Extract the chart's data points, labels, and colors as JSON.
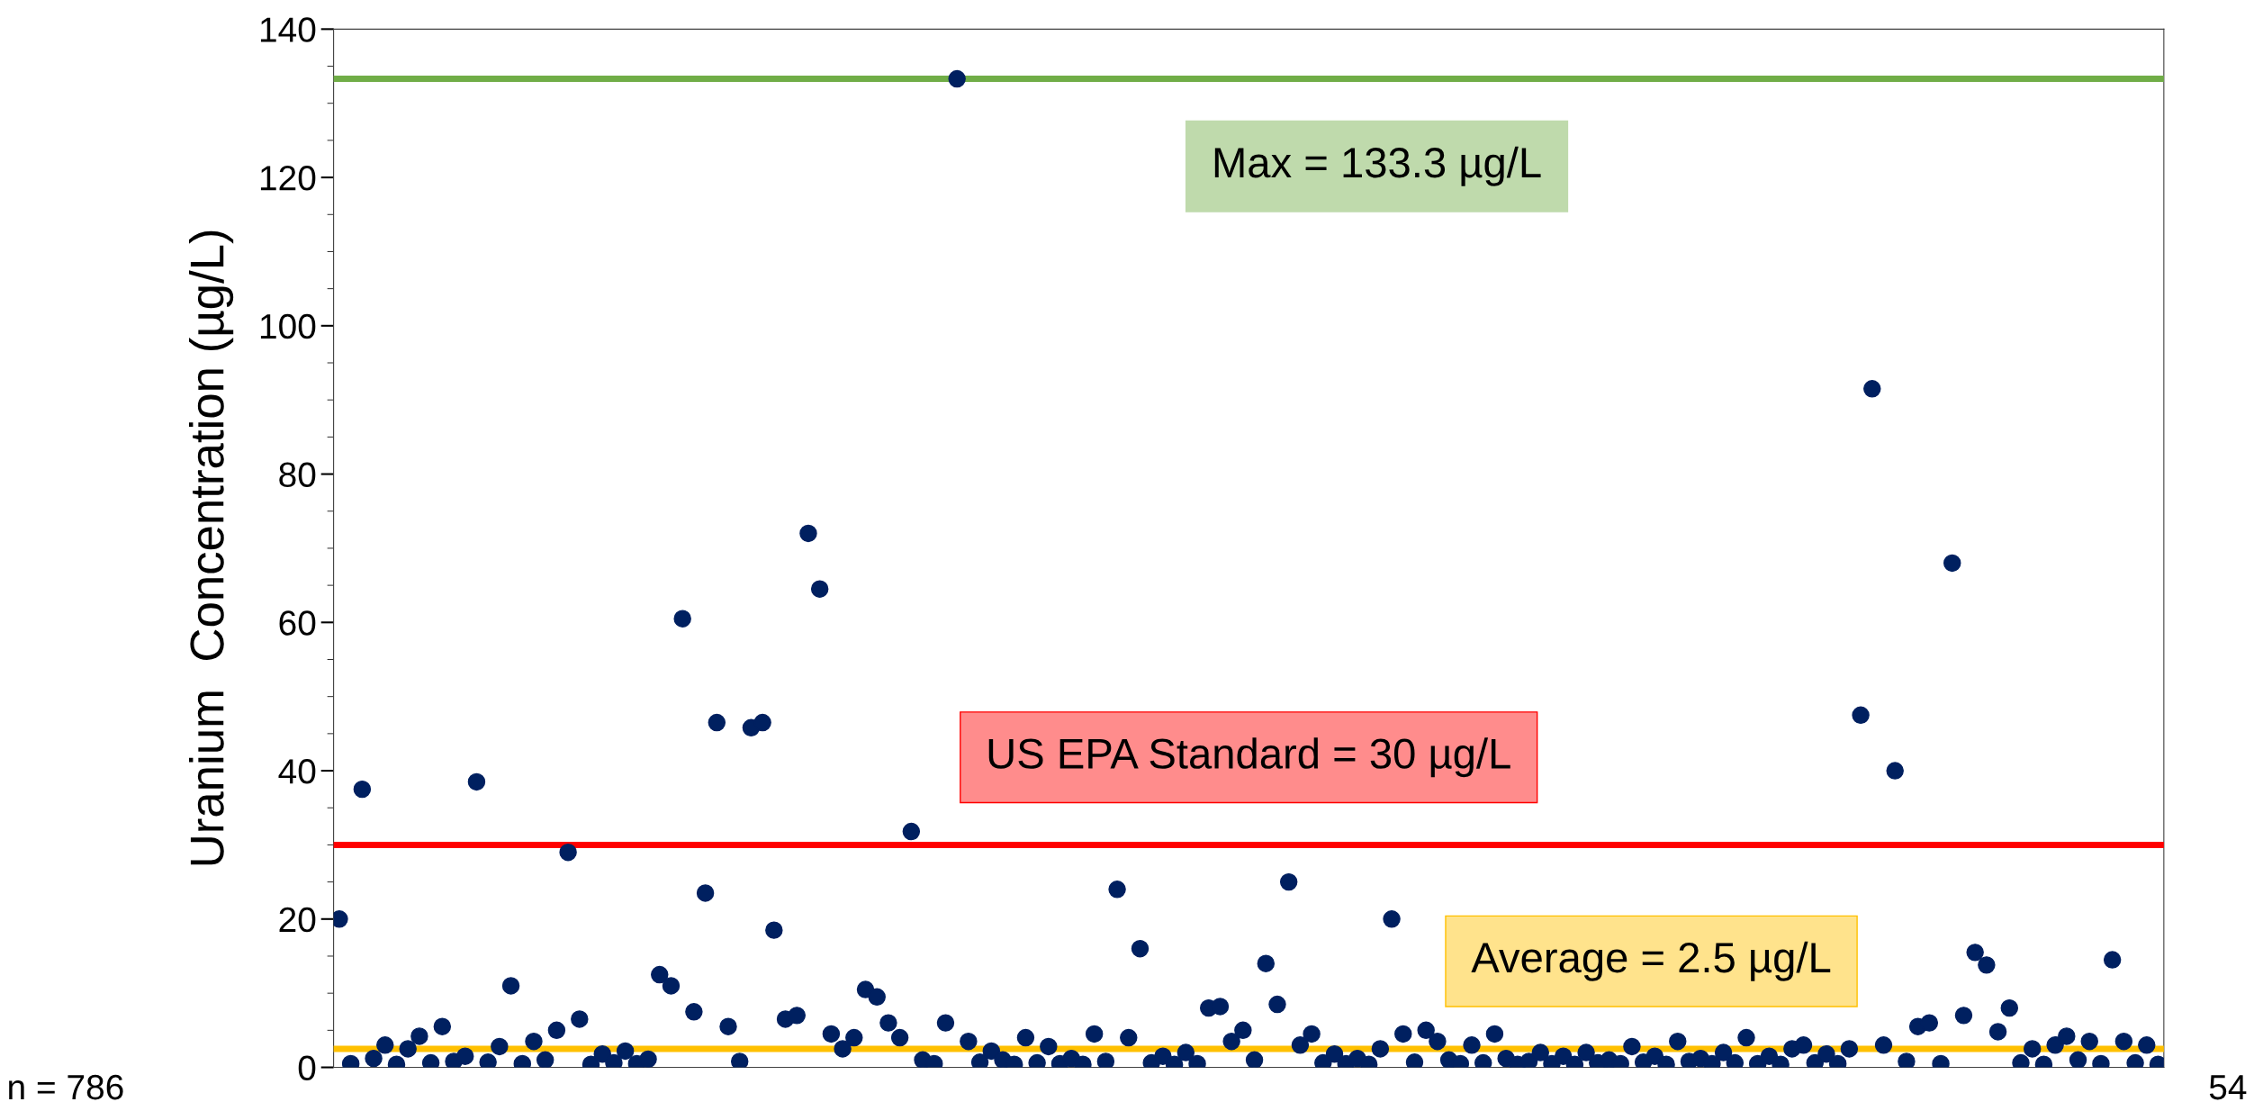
{
  "chart_data": {
    "type": "scatter",
    "ylabel": "Uranium  Concentration (µg/L)",
    "categories": [
      null,
      null,
      null,
      null,
      null,
      null,
      null,
      null,
      null,
      null,
      null,
      null,
      null,
      null,
      null,
      null,
      null,
      null,
      null,
      null,
      null,
      null,
      null,
      null,
      null,
      null,
      null,
      null,
      null,
      null,
      null,
      null,
      null,
      null,
      null,
      null,
      null,
      null,
      null,
      null,
      null,
      null,
      null,
      null,
      null,
      null,
      null,
      null,
      null,
      null,
      null,
      null,
      null,
      null,
      null,
      null,
      null,
      null,
      null,
      null,
      null,
      null,
      null,
      null,
      null,
      null,
      null,
      null,
      null,
      null,
      null,
      null,
      null,
      null,
      null,
      null,
      null,
      null,
      null,
      null,
      null,
      null,
      null,
      null,
      null,
      null,
      null,
      null,
      null,
      null,
      null,
      null,
      null,
      null,
      null,
      null,
      null,
      null,
      null,
      null,
      null,
      null,
      null,
      null,
      null,
      null,
      null,
      null,
      null,
      null,
      null,
      null,
      null,
      null,
      null,
      null,
      null,
      null,
      null,
      null,
      null,
      null,
      null,
      null,
      null,
      null,
      null,
      null,
      null,
      null,
      null,
      null,
      null,
      null,
      null,
      null,
      null,
      null,
      null,
      null,
      null,
      null,
      null,
      null,
      null,
      null,
      null,
      null,
      null,
      null,
      null,
      null,
      null,
      null,
      null,
      null,
      null,
      null,
      null,
      null
    ],
    "series": [
      {
        "color": "#002060",
        "values": [
          20,
          0.5,
          37.5,
          1.2,
          3,
          0.4,
          2.5,
          4.2,
          0.6,
          5.5,
          0.8,
          1.5,
          38.5,
          0.7,
          2.8,
          11,
          0.5,
          3.5,
          1.0,
          5,
          29,
          6.5,
          0.4,
          1.8,
          0.6,
          2.2,
          0.5,
          1.1,
          12.5,
          11,
          60.5,
          7.5,
          23.5,
          46.5,
          5.5,
          0.8,
          45.8,
          46.5,
          18.5,
          6.5,
          7,
          72,
          64.5,
          4.5,
          2.5,
          4,
          10.5,
          9.5,
          6,
          4,
          31.8,
          1.0,
          0.5,
          6,
          133.3,
          3.5,
          0.7,
          2.2,
          1.0,
          0.4,
          4,
          0.6,
          2.8,
          0.5,
          1.2,
          0.4,
          4.5,
          0.8,
          24,
          4,
          16,
          0.6,
          1.5,
          0.4,
          2,
          0.5,
          8,
          8.2,
          3.5,
          5,
          1.0,
          14,
          8.5,
          25,
          3,
          4.5,
          0.6,
          1.8,
          0.5,
          1.2,
          0.4,
          2.5,
          20,
          4.5,
          0.7,
          5,
          3.5,
          1.0,
          0.5,
          3,
          0.6,
          4.5,
          1.2,
          0.4,
          0.8,
          2,
          0.5,
          1.5,
          0.4,
          2,
          0.6,
          1.0,
          0.5,
          2.8,
          0.7,
          1.5,
          0.4,
          3.5,
          0.8,
          1.2,
          0.5,
          2,
          0.6,
          4,
          0.5,
          1.5,
          0.4,
          2.5,
          3,
          0.6,
          1.8,
          0.5,
          2.5,
          47.5,
          91.5,
          3,
          40,
          0.8,
          5.5,
          6,
          0.5,
          68,
          7,
          15.5,
          13.8,
          4.8,
          8,
          0.6,
          2.5,
          0.4,
          3,
          4.2,
          1.0,
          3.5,
          0.5,
          14.5,
          3.5,
          0.6,
          3,
          0.4
        ]
      }
    ],
    "ylim": [
      0,
      140
    ],
    "yticks": [
      0,
      20,
      40,
      60,
      80,
      100,
      120,
      140
    ],
    "marker": "circle",
    "legend": false,
    "grid": false,
    "ref_lines": [
      {
        "axis": "y",
        "value": 133.3,
        "label": "Max = 133.3 µg/L",
        "color": "#70ad47"
      },
      {
        "axis": "y",
        "value": 30,
        "label": "US EPA Standard = 30 µg/L",
        "color": "#ff0000"
      },
      {
        "axis": "y",
        "value": 2.5,
        "label": "Average = 2.5 µg/L",
        "color": "#ffc000"
      }
    ],
    "annotations": [
      "n = 786",
      "54"
    ]
  }
}
